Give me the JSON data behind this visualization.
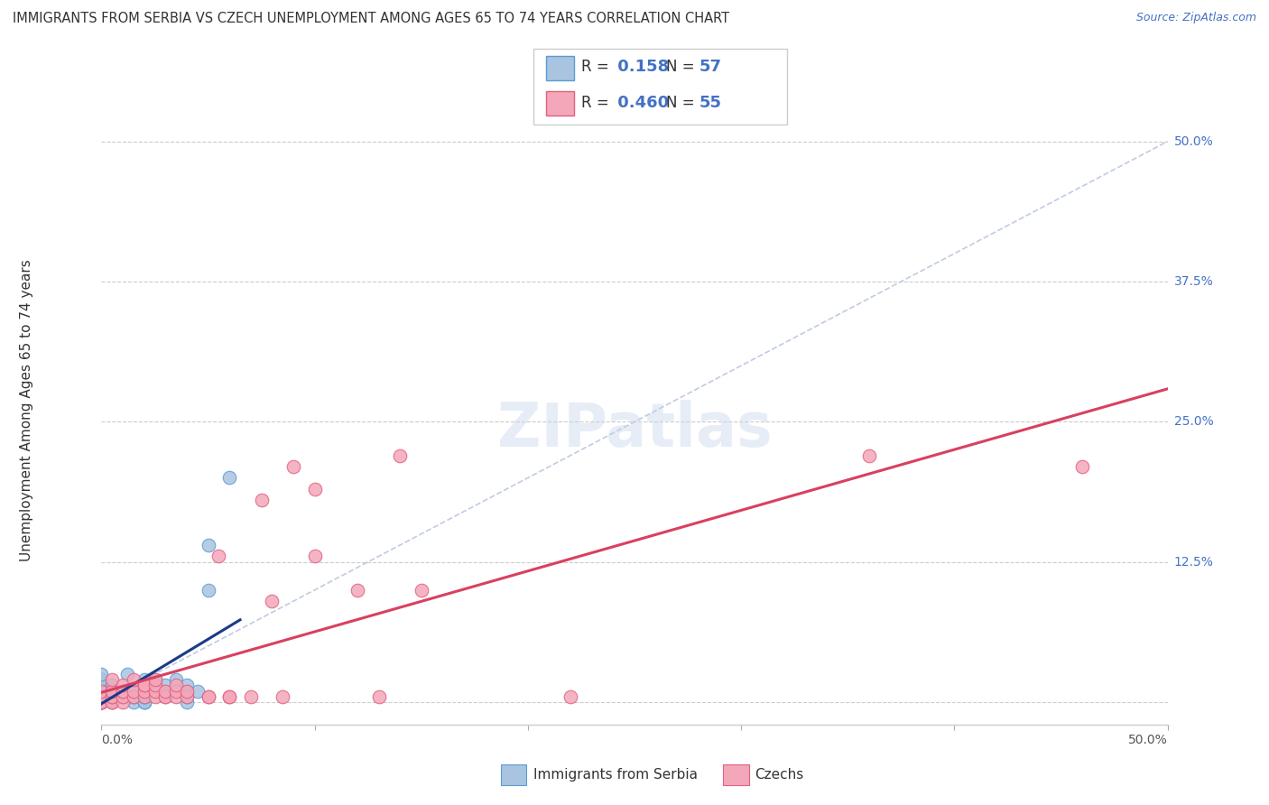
{
  "title": "IMMIGRANTS FROM SERBIA VS CZECH UNEMPLOYMENT AMONG AGES 65 TO 74 YEARS CORRELATION CHART",
  "source": "Source: ZipAtlas.com",
  "ylabel": "Unemployment Among Ages 65 to 74 years",
  "xlim": [
    0,
    0.5
  ],
  "ylim": [
    -0.02,
    0.54
  ],
  "yticks": [
    0.0,
    0.125,
    0.25,
    0.375,
    0.5
  ],
  "ytick_labels": [
    "",
    "12.5%",
    "25.0%",
    "37.5%",
    "50.0%"
  ],
  "serbia_R": 0.158,
  "serbia_N": 57,
  "czech_R": 0.46,
  "czech_N": 55,
  "serbia_color": "#a8c4e0",
  "serbia_edge_color": "#5b9bd5",
  "czech_color": "#f4a7b9",
  "czech_edge_color": "#e06080",
  "serbia_line_color": "#1a3a8a",
  "czech_line_color": "#d94060",
  "diag_line_color": "#c0cce0",
  "legend_text_color": "#4472c4",
  "watermark": "ZIPatlas",
  "serbia_x": [
    0.0,
    0.0,
    0.0,
    0.0,
    0.0,
    0.0,
    0.0,
    0.0,
    0.0,
    0.0,
    0.0,
    0.0,
    0.0,
    0.0,
    0.0,
    0.0,
    0.0,
    0.0,
    0.0,
    0.0,
    0.005,
    0.005,
    0.005,
    0.005,
    0.01,
    0.01,
    0.01,
    0.012,
    0.015,
    0.015,
    0.015,
    0.015,
    0.015,
    0.02,
    0.02,
    0.02,
    0.02,
    0.02,
    0.02,
    0.02,
    0.02,
    0.02,
    0.025,
    0.025,
    0.025,
    0.025,
    0.03,
    0.03,
    0.035,
    0.04,
    0.04,
    0.04,
    0.04,
    0.045,
    0.05,
    0.05,
    0.06
  ],
  "serbia_y": [
    0.0,
    0.0,
    0.0,
    0.0,
    0.0,
    0.005,
    0.005,
    0.005,
    0.005,
    0.01,
    0.01,
    0.01,
    0.01,
    0.01,
    0.015,
    0.015,
    0.02,
    0.02,
    0.02,
    0.025,
    0.0,
    0.005,
    0.01,
    0.015,
    0.005,
    0.005,
    0.01,
    0.025,
    0.0,
    0.005,
    0.005,
    0.01,
    0.01,
    0.0,
    0.0,
    0.0,
    0.005,
    0.005,
    0.01,
    0.01,
    0.01,
    0.02,
    0.01,
    0.01,
    0.015,
    0.02,
    0.01,
    0.015,
    0.02,
    0.0,
    0.005,
    0.01,
    0.015,
    0.01,
    0.1,
    0.14,
    0.2
  ],
  "czech_x": [
    0.0,
    0.0,
    0.0,
    0.0,
    0.0,
    0.005,
    0.005,
    0.005,
    0.005,
    0.005,
    0.005,
    0.005,
    0.01,
    0.01,
    0.01,
    0.01,
    0.01,
    0.015,
    0.015,
    0.015,
    0.02,
    0.02,
    0.02,
    0.02,
    0.025,
    0.025,
    0.025,
    0.025,
    0.03,
    0.03,
    0.03,
    0.035,
    0.035,
    0.035,
    0.04,
    0.04,
    0.05,
    0.05,
    0.055,
    0.06,
    0.06,
    0.07,
    0.075,
    0.08,
    0.085,
    0.09,
    0.1,
    0.1,
    0.12,
    0.13,
    0.14,
    0.15,
    0.22,
    0.36,
    0.46
  ],
  "czech_y": [
    0.0,
    0.0,
    0.0,
    0.005,
    0.01,
    0.0,
    0.0,
    0.005,
    0.005,
    0.01,
    0.01,
    0.02,
    0.0,
    0.005,
    0.01,
    0.01,
    0.015,
    0.005,
    0.01,
    0.02,
    0.005,
    0.01,
    0.015,
    0.015,
    0.005,
    0.01,
    0.015,
    0.02,
    0.005,
    0.005,
    0.01,
    0.005,
    0.01,
    0.015,
    0.005,
    0.01,
    0.005,
    0.005,
    0.13,
    0.005,
    0.005,
    0.005,
    0.18,
    0.09,
    0.005,
    0.21,
    0.13,
    0.19,
    0.1,
    0.005,
    0.22,
    0.1,
    0.005,
    0.22,
    0.21
  ]
}
